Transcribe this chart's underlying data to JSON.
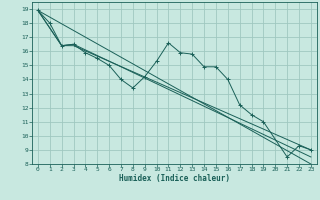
{
  "title": "",
  "xlabel": "Humidex (Indice chaleur)",
  "ylabel": "",
  "bg_color": "#c8e8e0",
  "grid_color": "#a0c8c0",
  "line_color": "#1a6058",
  "xlim": [
    -0.5,
    23.5
  ],
  "ylim": [
    8,
    19.5
  ],
  "yticks": [
    8,
    9,
    10,
    11,
    12,
    13,
    14,
    15,
    16,
    17,
    18,
    19
  ],
  "xticks": [
    0,
    1,
    2,
    3,
    4,
    5,
    6,
    7,
    8,
    9,
    10,
    11,
    12,
    13,
    14,
    15,
    16,
    17,
    18,
    19,
    20,
    21,
    22,
    23
  ],
  "line1_x": [
    0,
    1,
    2,
    3,
    4,
    5,
    6,
    7,
    8,
    9,
    10,
    11,
    12,
    13,
    14,
    15,
    16,
    17,
    18,
    19,
    21,
    22,
    23
  ],
  "line1_y": [
    18.9,
    18.0,
    16.4,
    16.5,
    15.9,
    15.5,
    15.0,
    14.0,
    13.4,
    14.2,
    15.3,
    16.6,
    15.9,
    15.8,
    14.9,
    14.9,
    14.0,
    12.2,
    11.5,
    11.0,
    8.5,
    9.3,
    9.0
  ],
  "line2_x": [
    0,
    2,
    3,
    23
  ],
  "line2_y": [
    18.9,
    16.4,
    16.4,
    9.0
  ],
  "line3_x": [
    0,
    23
  ],
  "line3_y": [
    18.9,
    8.0
  ],
  "line4_x": [
    0,
    2,
    3,
    23
  ],
  "line4_y": [
    18.9,
    16.4,
    16.5,
    8.5
  ]
}
